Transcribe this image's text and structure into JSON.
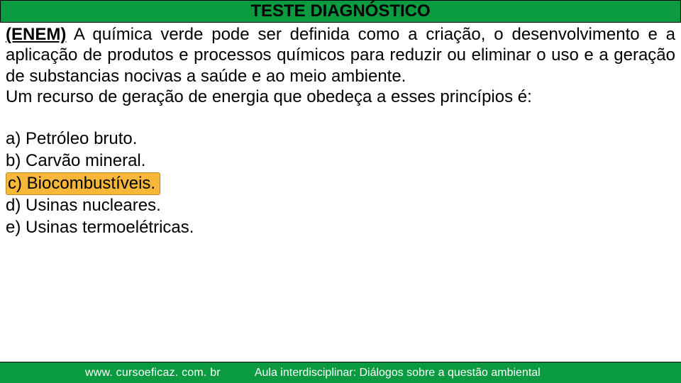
{
  "header": {
    "title": "TESTE DIAGNÓSTICO",
    "bg_color": "#0a9a3f",
    "title_color": "#000000",
    "title_fontsize": 24,
    "title_fontweight": "bold"
  },
  "question": {
    "source_tag": "(ENEM)",
    "body": "A química verde pode ser definida como a criação, o desenvolvimento e a aplicação de produtos e processos químicos para reduzir ou eliminar o uso e a geração de substancias nocivas a saúde e ao meio ambiente.",
    "prompt": "Um recurso de geração de energia que obedeça a esses princípios é:",
    "fontsize": 24,
    "text_color": "#000000"
  },
  "options": [
    {
      "letter": "a)",
      "text": "Petróleo bruto.",
      "highlighted": false
    },
    {
      "letter": "b)",
      "text": "Carvão mineral.",
      "highlighted": false
    },
    {
      "letter": "c)",
      "text": "Biocombustíveis.",
      "highlighted": true
    },
    {
      "letter": "d)",
      "text": "Usinas nucleares.",
      "highlighted": false
    },
    {
      "letter": "e)",
      "text": "Usinas termoelétricas.",
      "highlighted": false
    }
  ],
  "option_style": {
    "highlight_bg": "#f7b83a",
    "highlight_border": "#c08a1a",
    "fontsize": 24
  },
  "footer": {
    "bg_color": "#0a9a3f",
    "text_color": "#ffffff",
    "url": "www. cursoeficaz. com. br",
    "caption": "Aula interdisciplinar: Diálogos sobre a questão ambiental",
    "fontsize": 16
  }
}
